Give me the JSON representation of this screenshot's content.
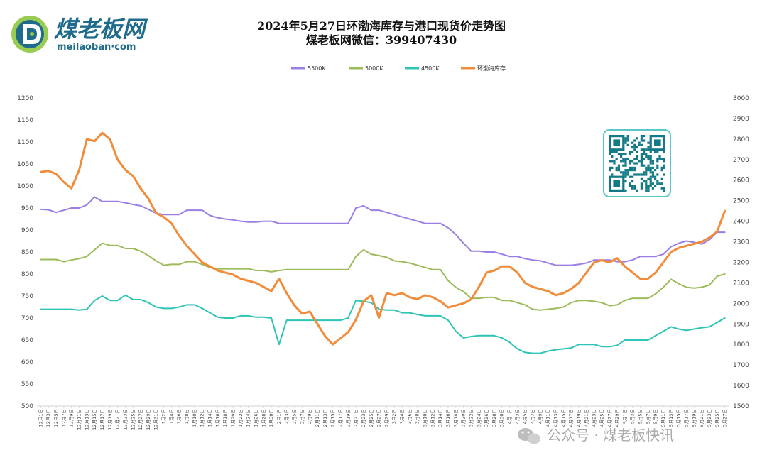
{
  "logo": {
    "cn": "煤老板网",
    "en": "meilaoban·com",
    "accent": "#1f6b8c",
    "green": "#8dc63f"
  },
  "watermark": {
    "text": "公众号 · 煤老板快讯",
    "icon": "wechat-icon"
  },
  "qr": {
    "icon": "qr-code-icon"
  },
  "chart_data": {
    "type": "line",
    "title": "2024年5月27日环渤海库存与港口现货价走势图",
    "subtitle": "煤老板网微信：399407430",
    "legend_position": "top-center",
    "grid": false,
    "ylim_left": [
      500,
      1200
    ],
    "ylim_right": [
      1500,
      3000
    ],
    "yticks_left": [
      "500",
      "550",
      "600",
      "650",
      "700",
      "750",
      "800",
      "850",
      "900",
      "950",
      "1000",
      "1050",
      "1100",
      "1150",
      "1200"
    ],
    "yticks_right": [
      "1500",
      "1600",
      "1700",
      "1800",
      "1900",
      "2000",
      "2100",
      "2200",
      "2300",
      "2400",
      "2500",
      "2600",
      "2700",
      "2800",
      "2900",
      "3000"
    ],
    "x": [
      "12月1日",
      "12月3日",
      "12月5日",
      "12月7日",
      "12月9日",
      "12月11日",
      "12月13日",
      "12月15日",
      "12月17日",
      "12月19日",
      "12月21日",
      "12月23日",
      "12月25日",
      "12月27日",
      "12月29日",
      "12月31日",
      "1月2日",
      "1月4日",
      "1月6日",
      "1月8日",
      "1月10日",
      "1月12日",
      "1月14日",
      "1月16日",
      "1月18日",
      "1月20日",
      "1月22日",
      "1月24日",
      "1月26日",
      "1月28日",
      "1月30日",
      "2月1日",
      "2月3日",
      "2月5日",
      "2月7日",
      "2月9日",
      "2月11日",
      "2月13日",
      "2月15日",
      "2月17日",
      "2月19日",
      "2月21日",
      "2月23日",
      "2月25日",
      "2月27日",
      "2月29日",
      "3月2日",
      "3月4日",
      "3月6日",
      "3月8日",
      "3月10日",
      "3月12日",
      "3月14日",
      "3月16日",
      "3月18日",
      "3月20日",
      "3月22日",
      "3月24日",
      "3月26日",
      "3月28日",
      "3月30日",
      "4月1日",
      "4月3日",
      "4月5日",
      "4月7日",
      "4月9日",
      "4月11日",
      "4月13日",
      "4月15日",
      "4月17日",
      "4月19日",
      "4月21日",
      "4月23日",
      "4月25日",
      "4月27日",
      "4月29日",
      "5月1日",
      "5月3日",
      "5月5日",
      "5月7日",
      "5月9日",
      "5月11日",
      "5月13日",
      "5月15日",
      "5月17日",
      "5月19日",
      "5月21日",
      "5月23日",
      "5月25日",
      "5月27日"
    ],
    "series": [
      {
        "name": "5500K",
        "axis": "left",
        "color": "#9b7fe6",
        "values": [
          947,
          946,
          940,
          945,
          950,
          950,
          957,
          975,
          965,
          965,
          965,
          962,
          958,
          955,
          947,
          938,
          935,
          935,
          935,
          945,
          945,
          945,
          933,
          928,
          925,
          923,
          920,
          918,
          918,
          920,
          920,
          915,
          915,
          915,
          915,
          915,
          915,
          915,
          915,
          915,
          915,
          950,
          955,
          945,
          945,
          940,
          935,
          930,
          925,
          920,
          915,
          915,
          915,
          905,
          890,
          870,
          852,
          852,
          850,
          850,
          845,
          840,
          840,
          835,
          832,
          830,
          825,
          820,
          820,
          820,
          822,
          825,
          832,
          832,
          832,
          828,
          828,
          832,
          840,
          840,
          840,
          845,
          862,
          870,
          875,
          872,
          868,
          878,
          895,
          895
        ]
      },
      {
        "name": "5000K",
        "axis": "left",
        "color": "#9cbb59",
        "values": [
          833,
          833,
          833,
          828,
          832,
          835,
          840,
          855,
          870,
          865,
          865,
          858,
          858,
          852,
          842,
          830,
          820,
          822,
          822,
          828,
          828,
          822,
          815,
          812,
          812,
          812,
          812,
          812,
          808,
          808,
          805,
          808,
          810,
          810,
          810,
          810,
          810,
          810,
          810,
          810,
          810,
          840,
          855,
          845,
          842,
          838,
          830,
          828,
          825,
          820,
          815,
          810,
          810,
          785,
          770,
          760,
          745,
          745,
          747,
          747,
          740,
          740,
          735,
          730,
          720,
          718,
          720,
          722,
          725,
          735,
          740,
          740,
          738,
          735,
          728,
          730,
          740,
          745,
          745,
          745,
          755,
          770,
          788,
          778,
          770,
          768,
          770,
          775,
          795,
          800
        ]
      },
      {
        "name": "4500K",
        "axis": "left",
        "color": "#2ec4b6",
        "values": [
          720,
          720,
          720,
          720,
          720,
          718,
          720,
          740,
          750,
          740,
          740,
          752,
          742,
          742,
          735,
          725,
          722,
          722,
          725,
          730,
          730,
          722,
          712,
          702,
          700,
          700,
          705,
          705,
          702,
          702,
          700,
          640,
          695,
          695,
          695,
          695,
          695,
          695,
          695,
          695,
          700,
          740,
          738,
          735,
          720,
          718,
          718,
          712,
          712,
          708,
          705,
          705,
          705,
          695,
          670,
          655,
          658,
          660,
          660,
          660,
          655,
          645,
          630,
          622,
          620,
          620,
          625,
          628,
          630,
          632,
          640,
          640,
          640,
          635,
          635,
          638,
          650,
          650,
          650,
          650,
          660,
          670,
          680,
          675,
          672,
          675,
          678,
          680,
          690,
          700
        ]
      },
      {
        "name": "环渤海库存",
        "axis": "right",
        "color": "#f08c3a",
        "values": [
          2640,
          2645,
          2630,
          2590,
          2560,
          2650,
          2800,
          2790,
          2830,
          2800,
          2700,
          2650,
          2620,
          2560,
          2510,
          2440,
          2420,
          2390,
          2330,
          2280,
          2240,
          2200,
          2180,
          2160,
          2150,
          2140,
          2120,
          2110,
          2100,
          2080,
          2060,
          2120,
          2050,
          1990,
          1950,
          1960,
          1900,
          1840,
          1800,
          1830,
          1860,
          1920,
          2010,
          2040,
          1930,
          2050,
          2040,
          2050,
          2030,
          2020,
          2040,
          2030,
          2010,
          1980,
          1990,
          2000,
          2020,
          2080,
          2150,
          2160,
          2180,
          2180,
          2150,
          2100,
          2080,
          2070,
          2060,
          2040,
          2050,
          2070,
          2100,
          2150,
          2200,
          2210,
          2200,
          2220,
          2180,
          2150,
          2120,
          2120,
          2150,
          2200,
          2250,
          2270,
          2280,
          2290,
          2300,
          2320,
          2350,
          2450
        ]
      }
    ]
  }
}
